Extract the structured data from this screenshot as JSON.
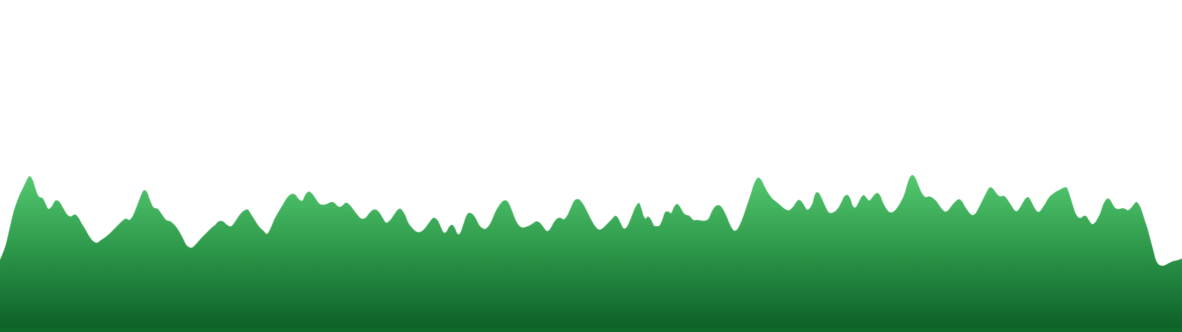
{
  "scene": {
    "background": "#ffffff",
    "shape": "grass-wave-silhouette",
    "gradient_top": "#54c96f",
    "gradient_mid": "#2f9a4c",
    "gradient_bottom": "#0b5e26",
    "bottom_strip": "#0f6a2a"
  }
}
